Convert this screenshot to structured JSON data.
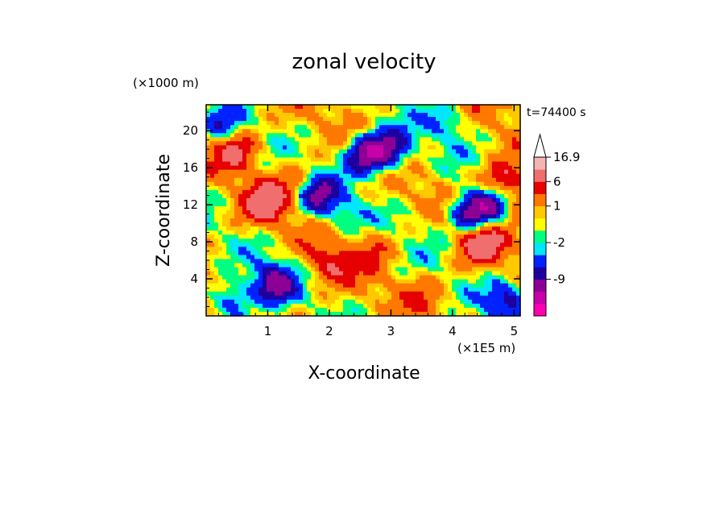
{
  "chart_data": {
    "type": "heatmap",
    "title": "zonal velocity",
    "xlabel": "X-coordinate",
    "ylabel": "Z-coordinate",
    "x_unit": "(×1E5 m)",
    "y_unit": "(×1000 m)",
    "time_label": "t=74400 s",
    "xlim": [
      0,
      5.1
    ],
    "ylim": [
      0,
      22.8
    ],
    "x_ticks": [
      1,
      2,
      3,
      4,
      5
    ],
    "y_ticks": [
      4,
      8,
      12,
      16,
      20
    ],
    "x_tick_labels": [
      "1",
      "2",
      "3",
      "4",
      "5"
    ],
    "y_tick_labels": [
      "4",
      "8",
      "12",
      "16",
      "20"
    ],
    "colorbar": {
      "colors": [
        "#ff00b4",
        "#c800aa",
        "#8c0096",
        "#1e00a0",
        "#0022ff",
        "#00e6ff",
        "#00ff80",
        "#ffff00",
        "#ffc800",
        "#ff7800",
        "#e60000",
        "#f06e6e",
        "#f5b4b4"
      ],
      "labels": [
        "-9",
        "-2",
        "1",
        "6",
        "16.9"
      ],
      "label_bands": [
        2,
        5,
        8,
        10,
        12
      ],
      "extend_max": true
    },
    "field_levels": [
      -20,
      -14,
      -9,
      -6,
      -4,
      -2,
      -1,
      0,
      1,
      2,
      4,
      6,
      10,
      16.9
    ],
    "features": [
      {
        "x": 0.95,
        "z": 12.0,
        "amp": 6
      },
      {
        "x": 0.5,
        "z": 18.0,
        "amp": 5
      },
      {
        "x": 1.45,
        "z": 14.5,
        "amp": 3
      },
      {
        "x": 2.0,
        "z": 5.5,
        "amp": 4
      },
      {
        "x": 2.7,
        "z": 7.5,
        "amp": 3
      },
      {
        "x": 3.55,
        "z": 2.5,
        "amp": 2
      },
      {
        "x": 4.8,
        "z": 14.0,
        "amp": 10
      },
      {
        "x": 4.45,
        "z": 8.0,
        "amp": 7
      },
      {
        "x": 4.95,
        "z": 12.0,
        "amp": 6
      },
      {
        "x": 2.6,
        "z": 17.5,
        "amp": -9
      },
      {
        "x": 3.0,
        "z": 18.0,
        "amp": -7
      },
      {
        "x": 1.8,
        "z": 13.0,
        "amp": -7
      },
      {
        "x": 4.3,
        "z": 11.0,
        "amp": -9
      },
      {
        "x": 4.75,
        "z": 12.5,
        "amp": -12
      },
      {
        "x": 1.1,
        "z": 3.5,
        "amp": -8
      },
      {
        "x": 0.4,
        "z": 1.5,
        "amp": -6
      },
      {
        "x": 0.25,
        "z": 20.5,
        "amp": -4
      },
      {
        "x": 2.3,
        "z": 11.0,
        "amp": -2
      },
      {
        "x": 3.5,
        "z": 9.5,
        "amp": -1
      },
      {
        "x": 4.9,
        "z": 1.5,
        "amp": -6
      },
      {
        "x": 3.9,
        "z": 21.0,
        "amp": -3
      }
    ]
  }
}
